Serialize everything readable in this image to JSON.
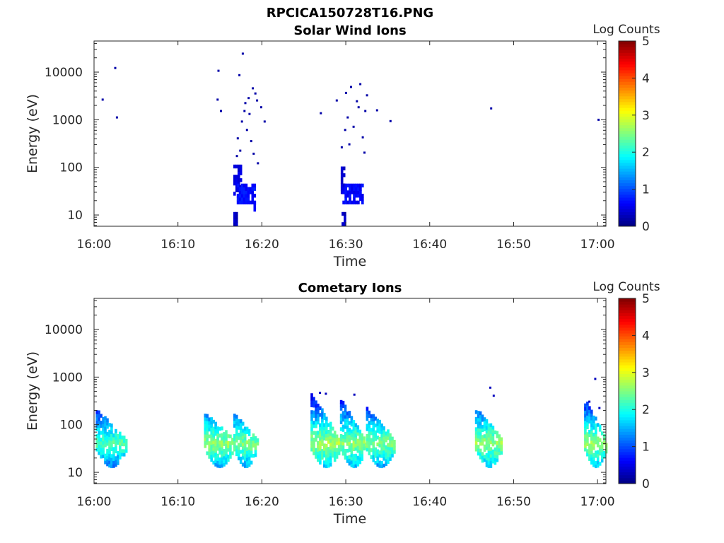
{
  "figure_title": "RPCICA150728T16.PNG",
  "colors": {
    "background": "#ffffff",
    "axis": "#262626",
    "colormap": "jet"
  },
  "chart_data": [
    {
      "type": "heatmap",
      "title": "Solar Wind Ions",
      "xlabel": "Time",
      "ylabel": "Energy (eV)",
      "x_tick_labels": [
        "16:00",
        "16:10",
        "16:20",
        "16:30",
        "16:40",
        "16:50",
        "17:00"
      ],
      "x_ticks_min": [
        0,
        10,
        20,
        30,
        40,
        50,
        60
      ],
      "xlim_min": [
        0,
        61
      ],
      "y_scale": "log",
      "y_tick_labels": [
        "10",
        "100",
        "1000",
        "10000"
      ],
      "y_ticks": [
        10,
        100,
        1000,
        10000
      ],
      "ylim": [
        5.8,
        45000
      ],
      "colorbar": {
        "label": "Log Counts",
        "ticks": [
          "0",
          "1",
          "2",
          "3",
          "4",
          "5"
        ],
        "range": [
          0,
          5
        ]
      },
      "grid": false,
      "blobs": [
        {
          "t": [
            16.6,
            16.9
          ],
          "e": [
            6,
            11
          ],
          "v": 0.2
        },
        {
          "t": [
            16.6,
            17.6
          ],
          "e": [
            26,
            100
          ],
          "v": 0.35
        },
        {
          "t": [
            17.0,
            19.1
          ],
          "e": [
            17,
            45
          ],
          "v": 0.55
        },
        {
          "t": [
            19.0,
            19.2
          ],
          "e": [
            12,
            17
          ],
          "v": 0.4
        },
        {
          "t": [
            29.4,
            29.9
          ],
          "e": [
            28,
            100
          ],
          "v": 0.3
        },
        {
          "t": [
            29.6,
            31.9
          ],
          "e": [
            17,
            44
          ],
          "v": 0.5
        },
        {
          "t": [
            29.5,
            29.8
          ],
          "e": [
            6,
            11
          ],
          "v": 0.2
        }
      ],
      "points": [
        [
          0.9,
          2600,
          0.2
        ],
        [
          2.4,
          12000,
          0.2
        ],
        [
          2.6,
          1100,
          0.2
        ],
        [
          14.7,
          10500,
          0.2
        ],
        [
          14.6,
          2600,
          0.2
        ],
        [
          15.0,
          1500,
          0.2
        ],
        [
          17.2,
          8500,
          0.2
        ],
        [
          17.6,
          24000,
          0.2
        ],
        [
          18.8,
          4500,
          0.2
        ],
        [
          19.3,
          2500,
          0.2
        ],
        [
          17.9,
          2200,
          0.2
        ],
        [
          18.4,
          1300,
          0.2
        ],
        [
          17.5,
          900,
          0.2
        ],
        [
          18.1,
          600,
          0.2
        ],
        [
          17.0,
          400,
          0.2
        ],
        [
          18.6,
          350,
          0.2
        ],
        [
          17.3,
          220,
          0.2
        ],
        [
          18.9,
          190,
          0.2
        ],
        [
          19.4,
          120,
          0.2
        ],
        [
          19.8,
          1800,
          0.2
        ],
        [
          20.2,
          900,
          0.2
        ],
        [
          18.3,
          2800,
          0.2
        ],
        [
          19.1,
          3500,
          0.2
        ],
        [
          17.8,
          1500,
          0.2
        ],
        [
          16.9,
          170,
          0.2
        ],
        [
          26.9,
          1350,
          0.2
        ],
        [
          28.8,
          2500,
          0.2
        ],
        [
          29.4,
          260,
          0.2
        ],
        [
          29.9,
          3600,
          0.2
        ],
        [
          30.5,
          4800,
          0.2
        ],
        [
          30.1,
          1100,
          0.2
        ],
        [
          31.2,
          2400,
          0.2
        ],
        [
          31.6,
          5500,
          0.2
        ],
        [
          32.4,
          3200,
          0.2
        ],
        [
          32.2,
          1500,
          0.2
        ],
        [
          30.8,
          700,
          0.2
        ],
        [
          31.4,
          1800,
          0.2
        ],
        [
          29.8,
          600,
          0.2
        ],
        [
          30.3,
          300,
          0.2
        ],
        [
          31.9,
          420,
          0.2
        ],
        [
          32.1,
          200,
          0.2
        ],
        [
          33.6,
          1550,
          0.2
        ],
        [
          35.2,
          920,
          0.2
        ],
        [
          47.2,
          1700,
          0.2
        ],
        [
          60.0,
          980,
          0.2
        ]
      ]
    },
    {
      "type": "heatmap",
      "title": "Cometary Ions",
      "xlabel": "Time",
      "ylabel": "Energy (eV)",
      "x_tick_labels": [
        "16:00",
        "16:10",
        "16:20",
        "16:30",
        "16:40",
        "16:50",
        "17:00"
      ],
      "x_ticks_min": [
        0,
        10,
        20,
        30,
        40,
        50,
        60
      ],
      "xlim_min": [
        0,
        61
      ],
      "y_scale": "log",
      "y_tick_labels": [
        "10",
        "100",
        "1000",
        "10000"
      ],
      "y_ticks": [
        10,
        100,
        1000,
        10000
      ],
      "ylim": [
        5.8,
        45000
      ],
      "colorbar": {
        "label": "Log Counts",
        "ticks": [
          "0",
          "1",
          "2",
          "3",
          "4",
          "5"
        ],
        "range": [
          0,
          5
        ]
      },
      "grid": false,
      "bursts": [
        {
          "t0": 0.2,
          "t1": 3.8,
          "peak": 2.3,
          "emax": 200
        },
        {
          "t0": 13.1,
          "t1": 16.6,
          "peak": 2.6,
          "emax": 170
        },
        {
          "t0": 16.6,
          "t1": 19.4,
          "peak": 2.5,
          "emax": 160
        },
        {
          "t0": 25.8,
          "t1": 29.3,
          "peak": 2.7,
          "emax": 420
        },
        {
          "t0": 29.3,
          "t1": 32.4,
          "peak": 2.6,
          "emax": 320
        },
        {
          "t0": 32.4,
          "t1": 35.8,
          "peak": 2.5,
          "emax": 220
        },
        {
          "t0": 45.4,
          "t1": 48.6,
          "peak": 2.6,
          "emax": 230
        },
        {
          "t0": 58.4,
          "t1": 61.0,
          "peak": 2.6,
          "emax": 330
        }
      ],
      "points": [
        [
          26.8,
          460,
          0.3
        ],
        [
          27.5,
          440,
          0.3
        ],
        [
          30.9,
          420,
          0.3
        ],
        [
          47.1,
          590,
          0.3
        ],
        [
          47.5,
          400,
          0.3
        ],
        [
          59.6,
          900,
          0.3
        ],
        [
          60.1,
          220,
          0.3
        ],
        [
          58.9,
          300,
          0.3
        ]
      ]
    }
  ]
}
